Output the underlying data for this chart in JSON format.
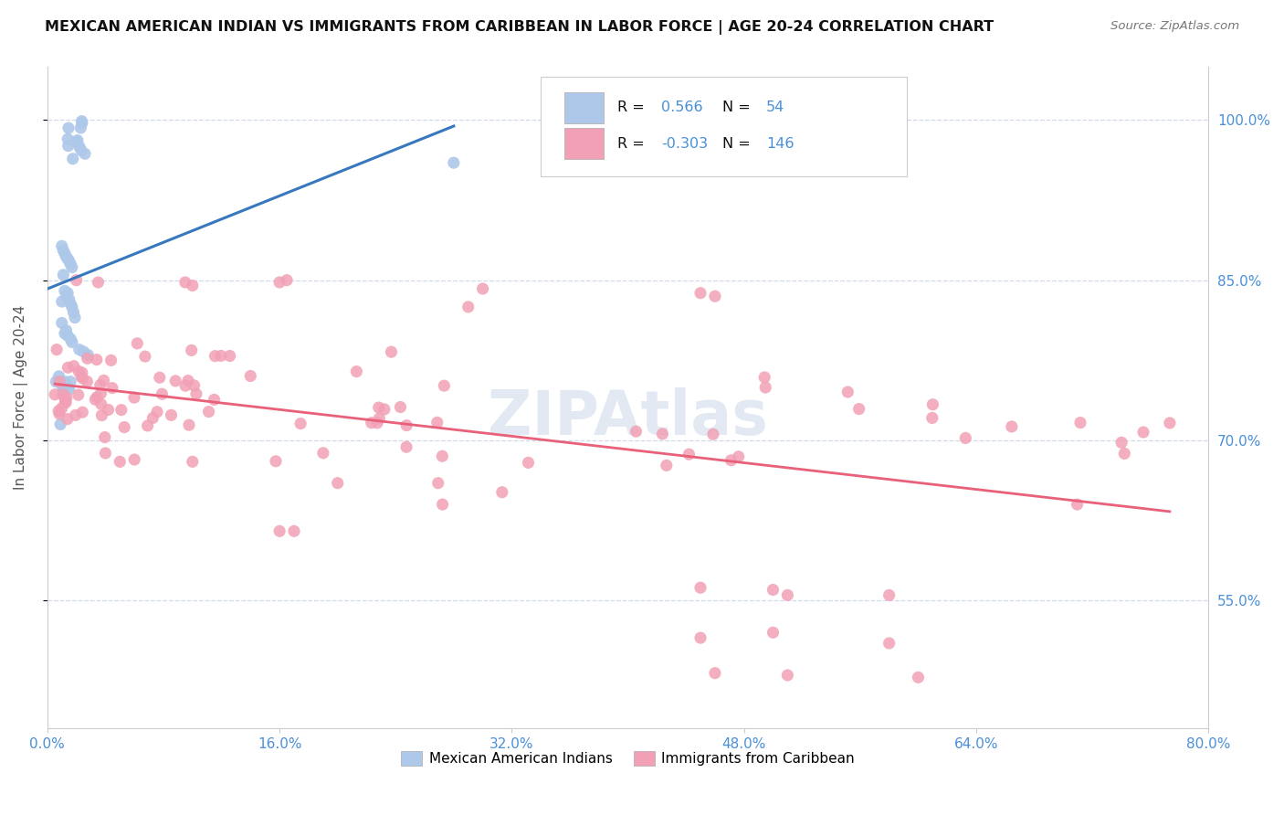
{
  "title": "MEXICAN AMERICAN INDIAN VS IMMIGRANTS FROM CARIBBEAN IN LABOR FORCE | AGE 20-24 CORRELATION CHART",
  "source_text": "Source: ZipAtlas.com",
  "ylabel": "In Labor Force | Age 20-24",
  "watermark": "ZIPAtlas",
  "legend_blue_label": "Mexican American Indians",
  "legend_pink_label": "Immigrants from Caribbean",
  "R_blue": 0.566,
  "N_blue": 54,
  "R_pink": -0.303,
  "N_pink": 146,
  "blue_color": "#adc8e8",
  "pink_color": "#f2a0b5",
  "blue_line_color": "#3878bf",
  "pink_line_color": "#e8607a",
  "background_color": "#ffffff",
  "grid_color": "#d0d8ea",
  "title_color": "#111111",
  "axis_label_color": "#4a90d9",
  "legend_text_color": "#111111",
  "source_color": "#777777",
  "ylabel_color": "#555555",
  "x_ticks": [
    0.0,
    0.16,
    0.32,
    0.48,
    0.64,
    0.8
  ],
  "y_ticks": [
    0.55,
    0.7,
    0.85,
    1.0
  ],
  "xlim": [
    0.0,
    0.8
  ],
  "ylim": [
    0.43,
    1.05
  ]
}
